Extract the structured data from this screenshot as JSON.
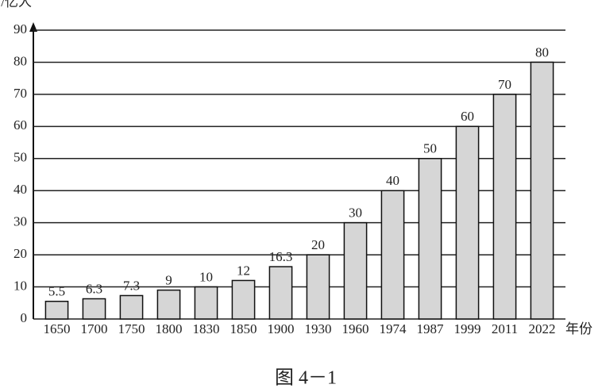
{
  "chart_data": {
    "type": "bar",
    "y_label": "人口/亿人",
    "x_label": "年份",
    "caption": "图 4－1",
    "categories": [
      "1650",
      "1700",
      "1750",
      "1800",
      "1830",
      "1850",
      "1900",
      "1930",
      "1960",
      "1974",
      "1987",
      "1999",
      "2011",
      "2022"
    ],
    "values": [
      5.5,
      6.3,
      7.3,
      9,
      10,
      12,
      16.3,
      20,
      30,
      40,
      50,
      60,
      70,
      80
    ],
    "color": "#d6d6d6",
    "ylim": [
      0,
      90
    ],
    "yticks": [
      0,
      10,
      20,
      30,
      40,
      50,
      60,
      70,
      80,
      90
    ],
    "grid": true
  }
}
